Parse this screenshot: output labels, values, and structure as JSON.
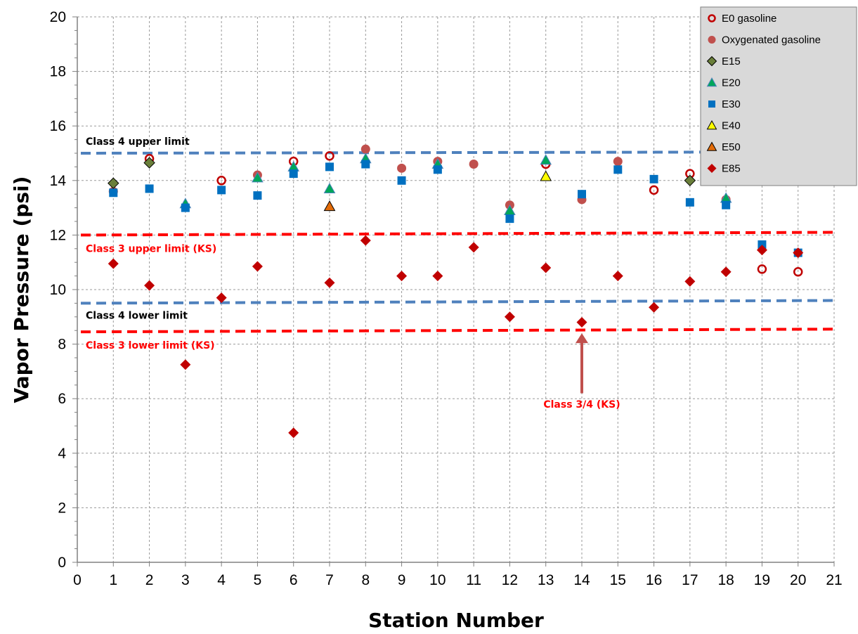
{
  "chart_data": {
    "type": "scatter",
    "title": "",
    "xlabel": "Station Number",
    "ylabel": "Vapor Pressure (psi)",
    "xlim": [
      0,
      21
    ],
    "ylim": [
      0,
      20
    ],
    "x_ticks": [
      0,
      1,
      2,
      3,
      4,
      5,
      6,
      7,
      8,
      9,
      10,
      11,
      12,
      13,
      14,
      15,
      16,
      17,
      18,
      19,
      20,
      21
    ],
    "y_ticks": [
      0,
      2,
      4,
      6,
      8,
      10,
      12,
      14,
      16,
      18,
      20
    ],
    "grid": true,
    "legend_position": "top-right",
    "series": [
      {
        "name": "E0 gasoline",
        "marker": "circle-open",
        "color": "#c00000",
        "points": [
          [
            2,
            14.8
          ],
          [
            4,
            14.0
          ],
          [
            6,
            14.7
          ],
          [
            7,
            14.9
          ],
          [
            13,
            14.6
          ],
          [
            16,
            13.65
          ],
          [
            17,
            14.25
          ],
          [
            19,
            10.75
          ],
          [
            20,
            10.65
          ]
        ]
      },
      {
        "name": "Oxygenated gasoline",
        "marker": "circle",
        "color": "#c0504d",
        "points": [
          [
            1,
            13.6
          ],
          [
            5,
            14.2
          ],
          [
            8,
            15.15
          ],
          [
            9,
            14.45
          ],
          [
            10,
            14.7
          ],
          [
            11,
            14.6
          ],
          [
            12,
            13.1
          ],
          [
            14,
            13.3
          ],
          [
            15,
            14.7
          ],
          [
            18,
            13.3
          ]
        ]
      },
      {
        "name": "E15",
        "marker": "diamond",
        "color": "#6a7f3a",
        "points": [
          [
            1,
            13.9
          ],
          [
            2,
            14.65
          ],
          [
            17,
            14.0
          ]
        ]
      },
      {
        "name": "E20",
        "marker": "triangle",
        "color": "#00a65a",
        "points": [
          [
            3,
            13.15
          ],
          [
            5,
            14.1
          ],
          [
            6,
            14.5
          ],
          [
            7,
            13.7
          ],
          [
            8,
            14.8
          ],
          [
            10,
            14.6
          ],
          [
            12,
            12.9
          ],
          [
            13,
            14.75
          ],
          [
            18,
            13.35
          ]
        ]
      },
      {
        "name": "E30",
        "marker": "square",
        "color": "#0070c0",
        "points": [
          [
            1,
            13.55
          ],
          [
            2,
            13.7
          ],
          [
            3,
            13.0
          ],
          [
            4,
            13.65
          ],
          [
            5,
            13.45
          ],
          [
            6,
            14.25
          ],
          [
            7,
            14.5
          ],
          [
            8,
            14.6
          ],
          [
            9,
            14.0
          ],
          [
            10,
            14.4
          ],
          [
            12,
            12.6
          ],
          [
            14,
            13.5
          ],
          [
            15,
            14.4
          ],
          [
            16,
            14.05
          ],
          [
            17,
            13.2
          ],
          [
            18,
            13.1
          ],
          [
            19,
            11.65
          ],
          [
            20,
            11.35
          ]
        ]
      },
      {
        "name": "E40",
        "marker": "triangle",
        "color": "#ffff00",
        "points": [
          [
            13,
            14.15
          ]
        ]
      },
      {
        "name": "E50",
        "marker": "triangle",
        "color": "#e36c09",
        "points": [
          [
            7,
            13.05
          ]
        ]
      },
      {
        "name": "E85",
        "marker": "diamond",
        "color": "#c00000",
        "points": [
          [
            1,
            10.95
          ],
          [
            2,
            10.15
          ],
          [
            3,
            7.25
          ],
          [
            4,
            9.7
          ],
          [
            5,
            10.85
          ],
          [
            6,
            4.75
          ],
          [
            7,
            10.25
          ],
          [
            8,
            11.8
          ],
          [
            9,
            10.5
          ],
          [
            10,
            10.5
          ],
          [
            11,
            11.55
          ],
          [
            12,
            9.0
          ],
          [
            13,
            10.8
          ],
          [
            14,
            8.8
          ],
          [
            15,
            10.5
          ],
          [
            16,
            9.35
          ],
          [
            17,
            10.3
          ],
          [
            18,
            10.65
          ],
          [
            19,
            11.45
          ],
          [
            20,
            11.35
          ]
        ]
      }
    ],
    "reference_lines": [
      {
        "label": "Class 4 upper limit",
        "y_start": 15.0,
        "y_end": 15.05,
        "color": "#4f81bd",
        "label_color": "#000000"
      },
      {
        "label": "Class 3 upper limit (KS)",
        "y_start": 12.0,
        "y_end": 12.1,
        "color": "#ff0000",
        "label_color": "#ff0000"
      },
      {
        "label": "Class 4 lower limit",
        "y_start": 9.5,
        "y_end": 9.6,
        "color": "#4f81bd",
        "label_color": "#000000"
      },
      {
        "label": "Class 3 lower limit (KS)",
        "y_start": 8.45,
        "y_end": 8.55,
        "color": "#ff0000",
        "label_color": "#ff0000"
      }
    ],
    "annotations": [
      {
        "text": "Class 3/4 (KS)",
        "x": 14,
        "y": 5.8,
        "arrow_from_y": 6.2,
        "arrow_to_y": 8.4,
        "color": "#ff0000",
        "arrow_color": "#c0504d"
      }
    ]
  }
}
